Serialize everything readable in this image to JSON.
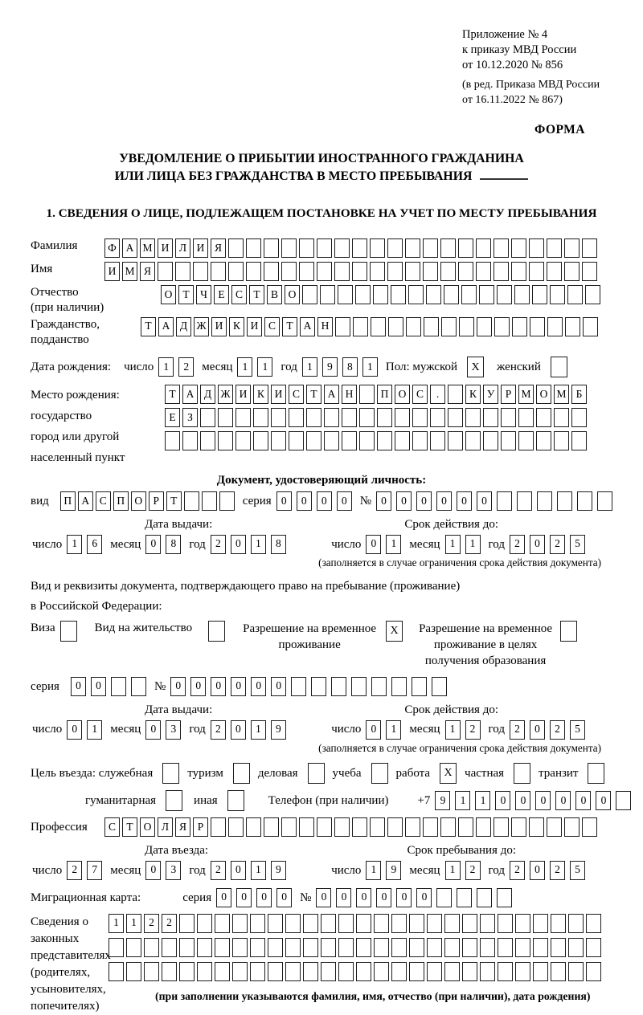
{
  "header": {
    "appendix": [
      "Приложение № 4",
      "к приказу МВД России",
      "от 10.12.2020 № 856"
    ],
    "edition": [
      "(в ред. Приказа МВД России",
      "от 16.11.2022 № 867)"
    ],
    "form_label": "ФОРМА"
  },
  "title": {
    "line1": "УВЕДОМЛЕНИЕ О ПРИБЫТИИ ИНОСТРАННОГО ГРАЖДАНИНА",
    "line2": "ИЛИ ЛИЦА БЕЗ ГРАЖДАНСТВА В МЕСТО ПРЕБЫВАНИЯ"
  },
  "section1": {
    "heading": "1. СВЕДЕНИЯ О ЛИЦЕ, ПОДЛЕЖАЩЕМ ПОСТАНОВКЕ НА УЧЕТ ПО МЕСТУ ПРЕБЫВАНИЯ"
  },
  "labels": {
    "day": "число",
    "month": "месяц",
    "year": "год",
    "series": "серия",
    "number": "№"
  },
  "fields": {
    "surname": {
      "label": "Фамилия",
      "cells": {
        "v": "ФАМИЛИЯ",
        "n": 28
      }
    },
    "name": {
      "label": "Имя",
      "cells": {
        "v": "ИМЯ",
        "n": 28
      }
    },
    "patronymic": {
      "label1": "Отчество",
      "label2": "(при наличии)",
      "cells": {
        "v": "ОТЧЕСТВО",
        "n": 25
      }
    },
    "citizenship": {
      "label1": "Гражданство,",
      "label2": "подданство",
      "cells": {
        "v": "ТАДЖИКИСТАН",
        "n": 26
      }
    }
  },
  "birth_date": {
    "label": "Дата рождения:",
    "day": {
      "v": "12",
      "n": 2
    },
    "month": {
      "v": "11",
      "n": 2
    },
    "year": {
      "v": "1981",
      "n": 4
    },
    "gender_label": "Пол: мужской",
    "male_mark": "X",
    "female_label": "женский",
    "female_mark": ""
  },
  "birth_place": {
    "label1": "Место рождения:",
    "label2": "государство",
    "label3": "город или другой",
    "label4": "населенный пункт",
    "row1": {
      "v": "ТАДЖИКИСТАН ПОС. КУРМОМБ",
      "n": 24
    },
    "row2": {
      "v": "ЕЗ",
      "n": 24
    },
    "row3": {
      "v": "",
      "n": 24
    }
  },
  "identity_doc": {
    "heading": "Документ, удостоверяющий личность:",
    "kind_label": "вид",
    "kind": {
      "v": "ПАСПОРТ",
      "n": 10
    },
    "series": {
      "v": "0000",
      "n": 4
    },
    "number": {
      "v": "000000",
      "n": 12
    },
    "issue_label": "Дата выдачи:",
    "issue": {
      "day": {
        "v": "16",
        "n": 2
      },
      "month": {
        "v": "08",
        "n": 2
      },
      "year": {
        "v": "2018",
        "n": 4
      }
    },
    "valid_label": "Срок действия до:",
    "valid": {
      "day": {
        "v": "01",
        "n": 2
      },
      "month": {
        "v": "11",
        "n": 2
      },
      "year": {
        "v": "2025",
        "n": 4
      }
    },
    "note": "(заполняется в случае ограничения срока действия документа)"
  },
  "residence_doc": {
    "intro1": "Вид и реквизиты документа, подтверждающего право на пребывание (проживание)",
    "intro2": "в Российской Федерации:",
    "visa_label": "Виза",
    "visa_mark": "",
    "permit_label": "Вид на жительство",
    "permit_mark": "",
    "temp_label1": "Разрешение на временное",
    "temp_label2": "проживание",
    "temp_mark": "X",
    "edu_label1": "Разрешение на временное",
    "edu_label2": "проживание в целях",
    "edu_label3": "получения образования",
    "edu_mark": "",
    "series": {
      "v": "00",
      "n": 4
    },
    "number": {
      "v": "000000",
      "n": 14
    },
    "issue_label": "Дата выдачи:",
    "issue": {
      "day": {
        "v": "01",
        "n": 2
      },
      "month": {
        "v": "03",
        "n": 2
      },
      "year": {
        "v": "2019",
        "n": 4
      }
    },
    "valid_label": "Срок действия до:",
    "valid": {
      "day": {
        "v": "01",
        "n": 2
      },
      "month": {
        "v": "12",
        "n": 2
      },
      "year": {
        "v": "2025",
        "n": 4
      }
    },
    "note": "(заполняется в случае ограничения срока действия документа)"
  },
  "purpose": {
    "label": "Цель въезда: служебная",
    "official_mark": "",
    "tourism_label": "туризм",
    "tourism_mark": "",
    "business_label": "деловая",
    "business_mark": "",
    "study_label": "учеба",
    "study_mark": "",
    "work_label": "работа",
    "work_mark": "X",
    "private_label": "частная",
    "private_mark": "",
    "transit_label": "транзит",
    "transit_mark": "",
    "humanitarian_label": "гуманитарная",
    "humanitarian_mark": "",
    "other_label": "иная",
    "other_mark": ""
  },
  "phone": {
    "label": "Телефон (при наличии)",
    "prefix": "+7",
    "cells": {
      "v": "911000000",
      "n": 10
    }
  },
  "profession": {
    "label": "Профессия",
    "cells": {
      "v": "СТОЛЯР",
      "n": 28
    }
  },
  "entry": {
    "entry_label": "Дата въезда:",
    "entry": {
      "day": {
        "v": "27",
        "n": 2
      },
      "month": {
        "v": "03",
        "n": 2
      },
      "year": {
        "v": "2019",
        "n": 4
      }
    },
    "stay_label": "Срок пребывания до:",
    "stay": {
      "day": {
        "v": "19",
        "n": 2
      },
      "month": {
        "v": "12",
        "n": 2
      },
      "year": {
        "v": "2025",
        "n": 4
      }
    }
  },
  "migration_card": {
    "label": "Миграционная карта:",
    "series": {
      "v": "0000",
      "n": 4
    },
    "number": {
      "v": "000000",
      "n": 10
    }
  },
  "representatives": {
    "label1": "Сведения о",
    "label2": "законных",
    "label3": "представителях",
    "label4": "(родителях,",
    "label5": "усыновителях,",
    "label6": "попечителях)",
    "row1": {
      "v": "1122",
      "n": 28
    },
    "row2": {
      "v": "",
      "n": 28
    },
    "row3": {
      "v": "",
      "n": 28
    },
    "note": "(при заполнении указываются фамилия, имя, отчество (при наличии), дата рождения)"
  }
}
